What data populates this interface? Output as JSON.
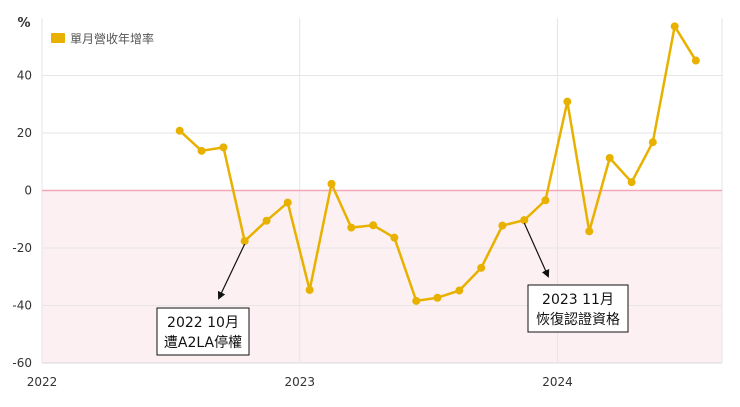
{
  "chart_data": {
    "type": "line",
    "title": "",
    "unit_label": "%",
    "xlabel": "",
    "ylabel": "",
    "ylim": [
      -60,
      60
    ],
    "y_ticks": [
      -60,
      -40,
      -20,
      0,
      20,
      40
    ],
    "x_ticks": [
      "2022",
      "2023",
      "2024"
    ],
    "legend": {
      "position": "top-left",
      "label": "單月營收年增率"
    },
    "grid": true,
    "negative_band_color": "#fdf0f3",
    "zero_line_color": "#f2a7b7",
    "series_color": "#e8b100",
    "series": [
      {
        "name": "單月營收年增率",
        "x": [
          "2022-07",
          "2022-08",
          "2022-09",
          "2022-10",
          "2022-11",
          "2022-12",
          "2023-01",
          "2023-02",
          "2023-03",
          "2023-04",
          "2023-05",
          "2023-06",
          "2023-07",
          "2023-08",
          "2023-09",
          "2023-10",
          "2023-11",
          "2023-12",
          "2024-01",
          "2024-02",
          "2024-03",
          "2024-04",
          "2024-05",
          "2024-06",
          "2024-07"
        ],
        "values": [
          20.8,
          13.8,
          15.0,
          -17.6,
          -10.5,
          -4.2,
          -34.6,
          2.3,
          -12.9,
          -12.1,
          -16.4,
          -38.4,
          -37.3,
          -34.8,
          -26.9,
          -12.2,
          -10.3,
          -3.4,
          30.9,
          -14.2,
          11.3,
          2.9,
          16.8,
          57.1,
          45.2
        ]
      }
    ],
    "annotations": [
      {
        "lines": [
          "2022 10月",
          "遭A2LA停權"
        ],
        "x": "2022-10",
        "y": -17.6
      },
      {
        "lines": [
          "2023 11月",
          "恢復認證資格"
        ],
        "x": "2023-11",
        "y": -10.3
      }
    ]
  }
}
